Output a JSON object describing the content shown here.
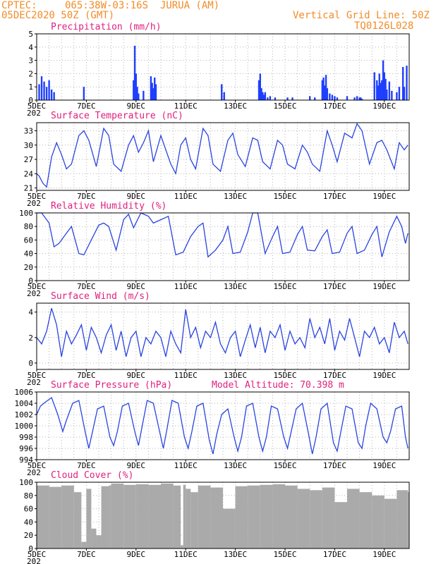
{
  "header": {
    "source": "CPTEC:",
    "location": "065:38W-03:16S  JURUA (AM)",
    "date_line": "05DEC2020 50Z (GMT)",
    "grid_note": "Vertical Grid Line: 50Z",
    "run_id": "TQ0126L028"
  },
  "x_ticks": [
    "5DEC",
    "7DEC",
    "9DEC",
    "11DEC",
    "13DEC",
    "15DEC",
    "17DEC",
    "19DEC"
  ],
  "year_fragment": "202",
  "chart_data": [
    {
      "type": "bar",
      "title": "Precipitation (mm/h)",
      "ylim": [
        0,
        5
      ],
      "yticks": [
        0,
        1,
        2,
        3,
        4,
        5
      ],
      "x_range": [
        5,
        20
      ],
      "grid": true,
      "color": "#1f3fff",
      "x": [
        5.1,
        5.2,
        5.3,
        5.4,
        5.5,
        5.6,
        5.7,
        6.9,
        8.9,
        8.95,
        9.0,
        9.05,
        9.1,
        9.3,
        9.6,
        9.65,
        9.7,
        9.75,
        9.8,
        12.45,
        12.55,
        13.95,
        14.0,
        14.05,
        14.1,
        14.15,
        14.2,
        14.3,
        14.4,
        14.6,
        15.1,
        15.3,
        16.0,
        16.2,
        16.5,
        16.55,
        16.6,
        16.65,
        16.7,
        16.8,
        16.9,
        17.0,
        17.1,
        17.5,
        17.8,
        17.9,
        18.0,
        18.05,
        18.1,
        18.6,
        18.7,
        18.75,
        18.8,
        18.85,
        18.9,
        18.95,
        19.0,
        19.05,
        19.1,
        19.2,
        19.3,
        19.5,
        19.6,
        19.75,
        19.8,
        19.9
      ],
      "values": [
        1.2,
        1.8,
        1.4,
        1.0,
        1.5,
        0.8,
        0.6,
        1.0,
        1.5,
        4.1,
        2.0,
        1.0,
        0.5,
        0.7,
        1.8,
        1.3,
        0.9,
        1.7,
        1.2,
        1.2,
        0.6,
        1.5,
        2.0,
        0.9,
        0.6,
        0.4,
        0.6,
        0.2,
        0.3,
        0.2,
        0.2,
        0.2,
        0.3,
        0.2,
        1.5,
        1.7,
        1.1,
        1.9,
        0.9,
        0.5,
        0.4,
        0.3,
        0.2,
        0.3,
        0.2,
        0.3,
        0.2,
        0.2,
        0.1,
        2.1,
        1.5,
        1.1,
        2.0,
        1.3,
        1.5,
        3.0,
        2.1,
        1.6,
        0.8,
        1.4,
        0.7,
        0.6,
        1.0,
        2.5,
        1.0,
        2.6
      ]
    },
    {
      "type": "line",
      "title": "Surface Temperature (nC)",
      "ylim": [
        20.5,
        34.7
      ],
      "yticks": [
        21,
        24,
        27,
        30,
        33
      ],
      "x_range": [
        5,
        20
      ],
      "grid": true,
      "color": "#2a44e0",
      "x": [
        5.0,
        5.1,
        5.25,
        5.4,
        5.6,
        5.8,
        6.0,
        6.2,
        6.4,
        6.7,
        6.9,
        7.1,
        7.4,
        7.7,
        7.9,
        8.1,
        8.4,
        8.7,
        8.9,
        9.1,
        9.3,
        9.5,
        9.7,
        10.0,
        10.2,
        10.4,
        10.6,
        10.8,
        11.0,
        11.2,
        11.4,
        11.7,
        11.9,
        12.1,
        12.4,
        12.7,
        12.9,
        13.1,
        13.4,
        13.7,
        13.9,
        14.1,
        14.4,
        14.7,
        14.9,
        15.1,
        15.4,
        15.7,
        15.9,
        16.1,
        16.4,
        16.7,
        16.9,
        17.1,
        17.4,
        17.7,
        17.9,
        18.1,
        18.4,
        18.7,
        18.9,
        19.1,
        19.4,
        19.6,
        19.8,
        19.95
      ],
      "values": [
        24.0,
        23.5,
        22.0,
        21.2,
        27.5,
        30.5,
        28.0,
        25.0,
        26.0,
        32.0,
        33.0,
        31.0,
        25.5,
        33.5,
        32.0,
        26.0,
        24.5,
        30.0,
        32.0,
        28.5,
        30.5,
        33.0,
        26.5,
        32.0,
        29.0,
        26.0,
        24.0,
        30.0,
        31.5,
        27.0,
        25.0,
        33.5,
        32.0,
        26.0,
        24.5,
        31.0,
        32.5,
        28.0,
        25.5,
        31.5,
        31.0,
        26.5,
        25.0,
        31.0,
        30.0,
        26.0,
        25.0,
        30.0,
        28.5,
        26.0,
        24.5,
        33.0,
        30.0,
        26.5,
        32.5,
        31.5,
        34.5,
        33.0,
        26.0,
        30.5,
        31.0,
        29.0,
        25.0,
        30.5,
        29.0,
        30.0
      ]
    },
    {
      "type": "line",
      "title": "Relative Humidity (%)",
      "ylim": [
        0,
        100
      ],
      "yticks": [
        0,
        20,
        40,
        60,
        80,
        100
      ],
      "x_range": [
        5,
        20
      ],
      "grid": true,
      "color": "#2a44e0",
      "x": [
        5.0,
        5.2,
        5.5,
        5.7,
        5.9,
        6.2,
        6.4,
        6.7,
        6.9,
        7.2,
        7.5,
        7.7,
        7.9,
        8.2,
        8.5,
        8.7,
        8.9,
        9.2,
        9.5,
        9.7,
        10.0,
        10.3,
        10.6,
        10.9,
        11.2,
        11.5,
        11.7,
        11.9,
        12.2,
        12.5,
        12.7,
        12.9,
        13.2,
        13.5,
        13.7,
        13.9,
        14.2,
        14.5,
        14.7,
        14.9,
        15.2,
        15.5,
        15.7,
        15.9,
        16.2,
        16.5,
        16.7,
        16.9,
        17.2,
        17.5,
        17.7,
        17.9,
        18.2,
        18.5,
        18.7,
        18.9,
        19.2,
        19.5,
        19.7,
        19.85,
        19.95
      ],
      "values": [
        100,
        100,
        85,
        50,
        55,
        70,
        80,
        40,
        38,
        60,
        82,
        85,
        80,
        45,
        90,
        98,
        78,
        100,
        95,
        85,
        90,
        95,
        38,
        42,
        65,
        80,
        85,
        35,
        45,
        60,
        80,
        40,
        42,
        72,
        100,
        100,
        40,
        65,
        80,
        40,
        42,
        68,
        80,
        45,
        44,
        65,
        75,
        40,
        42,
        70,
        80,
        40,
        45,
        68,
        80,
        35,
        72,
        95,
        80,
        55,
        70
      ]
    },
    {
      "type": "line",
      "title": "Surface Wind (m/s)",
      "ylim": [
        -0.5,
        4.7
      ],
      "yticks": [
        0,
        2,
        4
      ],
      "x_range": [
        5,
        20
      ],
      "grid": true,
      "color": "#2a44e0",
      "x": [
        5.0,
        5.2,
        5.4,
        5.6,
        5.8,
        6.0,
        6.2,
        6.4,
        6.6,
        6.8,
        7.0,
        7.2,
        7.4,
        7.6,
        7.8,
        8.0,
        8.2,
        8.4,
        8.6,
        8.8,
        9.0,
        9.2,
        9.4,
        9.6,
        9.8,
        10.0,
        10.2,
        10.4,
        10.6,
        10.8,
        11.0,
        11.2,
        11.4,
        11.6,
        11.8,
        12.0,
        12.2,
        12.4,
        12.6,
        12.8,
        13.0,
        13.2,
        13.4,
        13.6,
        13.8,
        14.0,
        14.2,
        14.4,
        14.6,
        14.8,
        15.0,
        15.2,
        15.4,
        15.6,
        15.8,
        16.0,
        16.2,
        16.4,
        16.6,
        16.8,
        17.0,
        17.2,
        17.4,
        17.6,
        17.8,
        18.0,
        18.2,
        18.4,
        18.6,
        18.8,
        19.0,
        19.2,
        19.4,
        19.6,
        19.8,
        19.95
      ],
      "values": [
        2.0,
        1.5,
        2.5,
        4.3,
        3.0,
        0.5,
        2.5,
        1.5,
        2.2,
        3.0,
        1.0,
        2.8,
        2.0,
        0.8,
        2.2,
        3.0,
        1.0,
        2.5,
        0.5,
        2.0,
        2.5,
        0.5,
        2.0,
        1.5,
        2.5,
        2.0,
        0.5,
        2.5,
        1.5,
        0.8,
        4.2,
        2.0,
        2.8,
        1.2,
        2.5,
        2.0,
        3.2,
        1.5,
        0.8,
        2.0,
        2.5,
        0.5,
        1.8,
        3.0,
        1.2,
        2.8,
        0.8,
        2.5,
        2.0,
        3.0,
        1.0,
        2.5,
        1.5,
        2.0,
        1.2,
        3.5,
        2.0,
        2.8,
        1.5,
        3.5,
        1.0,
        2.5,
        1.8,
        3.5,
        2.0,
        0.5,
        2.5,
        2.0,
        2.8,
        1.5,
        2.0,
        0.8,
        3.2,
        2.0,
        2.5,
        1.5
      ]
    },
    {
      "type": "line",
      "title": "Surface Pressure (hPa)",
      "annotation": "Model Altitude: 70.398 m",
      "ylim": [
        994,
        1006
      ],
      "yticks": [
        994,
        996,
        998,
        1000,
        1002,
        1004,
        1006
      ],
      "x_range": [
        5,
        20
      ],
      "grid": true,
      "color": "#2a44e0",
      "x": [
        5.0,
        5.15,
        5.35,
        5.6,
        5.85,
        6.05,
        6.2,
        6.45,
        6.7,
        6.95,
        7.1,
        7.25,
        7.45,
        7.7,
        7.95,
        8.1,
        8.25,
        8.45,
        8.7,
        8.95,
        9.1,
        9.25,
        9.45,
        9.7,
        9.95,
        10.1,
        10.25,
        10.45,
        10.7,
        10.95,
        11.1,
        11.25,
        11.45,
        11.7,
        11.95,
        12.1,
        12.25,
        12.45,
        12.7,
        12.95,
        13.1,
        13.25,
        13.45,
        13.7,
        13.95,
        14.1,
        14.25,
        14.45,
        14.7,
        14.95,
        15.1,
        15.25,
        15.45,
        15.7,
        15.95,
        16.1,
        16.25,
        16.45,
        16.7,
        16.95,
        17.1,
        17.25,
        17.45,
        17.7,
        17.95,
        18.1,
        18.25,
        18.45,
        18.7,
        18.95,
        19.1,
        19.25,
        19.45,
        19.7,
        19.85,
        19.95
      ],
      "values": [
        1002.0,
        1003.5,
        1004.2,
        1005.0,
        1002.0,
        999.0,
        1001.0,
        1004.0,
        1004.5,
        999.0,
        996.0,
        999.0,
        1003.0,
        1003.5,
        998.0,
        996.5,
        999.0,
        1003.5,
        1004.0,
        999.0,
        996.5,
        1000.0,
        1004.5,
        1004.0,
        999.0,
        996.0,
        999.5,
        1004.5,
        1004.0,
        998.0,
        996.0,
        999.0,
        1003.5,
        1004.0,
        997.5,
        995.0,
        998.5,
        1002.0,
        1003.0,
        998.0,
        995.5,
        998.0,
        1003.5,
        1004.0,
        998.0,
        995.5,
        998.0,
        1003.5,
        1003.0,
        998.0,
        996.0,
        999.0,
        1003.0,
        1004.0,
        998.5,
        995.0,
        998.0,
        1003.0,
        1004.0,
        997.0,
        995.5,
        999.0,
        1003.5,
        1003.0,
        997.0,
        996.0,
        1000.0,
        1004.0,
        1003.0,
        998.0,
        997.0,
        999.0,
        1003.0,
        1003.5,
        998.0,
        996.0
      ]
    },
    {
      "type": "area",
      "title": "Cloud Cover (%)",
      "ylim": [
        0,
        100
      ],
      "yticks": [
        0,
        20,
        40,
        60,
        80,
        100
      ],
      "x_range": [
        5,
        20
      ],
      "grid": true,
      "color": "#aaaaaa",
      "x": [
        5.0,
        5.5,
        6.0,
        6.5,
        6.8,
        7.0,
        7.2,
        7.4,
        7.6,
        7.9,
        8.0,
        8.5,
        9.0,
        9.5,
        10.0,
        10.5,
        10.8,
        10.9,
        11.0,
        11.2,
        11.5,
        12.0,
        12.5,
        13.0,
        13.5,
        14.0,
        14.5,
        15.0,
        15.5,
        16.0,
        16.5,
        17.0,
        17.5,
        18.0,
        18.5,
        19.0,
        19.5,
        19.95
      ],
      "values": [
        95,
        93,
        95,
        85,
        10,
        90,
        30,
        20,
        94,
        95,
        98,
        96,
        97,
        96,
        98,
        95,
        5,
        96,
        90,
        85,
        95,
        92,
        60,
        94,
        95,
        96,
        97,
        95,
        90,
        88,
        92,
        70,
        90,
        85,
        80,
        75,
        88,
        85
      ]
    }
  ]
}
